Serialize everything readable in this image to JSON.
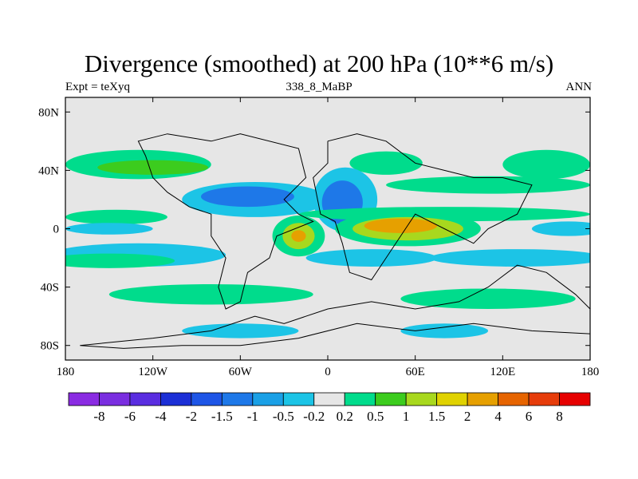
{
  "title": "Divergence (smoothed) at 200 hPa (10**6 m/s)",
  "subtitle_left": "Expt = teXyq",
  "subtitle_center": "338_8_MaBP",
  "subtitle_right": "ANN",
  "map": {
    "projection": "cylindrical equidistant",
    "lon_range": [
      -180,
      180
    ],
    "lat_range": [
      -90,
      90
    ],
    "background_color": "#e6e6e6",
    "x_ticks": [
      {
        "value": -180,
        "label": "180"
      },
      {
        "value": -120,
        "label": "120W"
      },
      {
        "value": -60,
        "label": "60W"
      },
      {
        "value": 0,
        "label": "0"
      },
      {
        "value": 60,
        "label": "60E"
      },
      {
        "value": 120,
        "label": "120E"
      },
      {
        "value": 180,
        "label": "180"
      }
    ],
    "y_ticks": [
      {
        "value": 80,
        "label": "80N"
      },
      {
        "value": 40,
        "label": "40N"
      },
      {
        "value": 0,
        "label": "0"
      },
      {
        "value": -40,
        "label": "40S"
      },
      {
        "value": -80,
        "label": "80S"
      }
    ]
  },
  "colorbar": {
    "colors": [
      "#8a2be2",
      "#7a2ee0",
      "#5a2de0",
      "#1c2fd6",
      "#1e55e6",
      "#1e78e8",
      "#1aa0e6",
      "#1cc4e6",
      "#e6e6e6",
      "#00dc8c",
      "#3ccc1e",
      "#a8d81e",
      "#e0d200",
      "#e6a000",
      "#e66400",
      "#e63c0a",
      "#e60000"
    ],
    "labels": [
      "-8",
      "-6",
      "-4",
      "-2",
      "-1.5",
      "-1",
      "-0.5",
      "-0.2",
      "0.2",
      "0.5",
      "1",
      "1.5",
      "2",
      "4",
      "6",
      "8"
    ]
  },
  "field_blobs": [
    {
      "lon": -130,
      "lat": 44,
      "rx": 50,
      "ry": 10,
      "level": 1
    },
    {
      "lon": -120,
      "lat": 42,
      "rx": 38,
      "ry": 5,
      "level": 2
    },
    {
      "lon": 150,
      "lat": 44,
      "rx": 30,
      "ry": 10,
      "level": 1
    },
    {
      "lon": 40,
      "lat": 45,
      "rx": 25,
      "ry": 8,
      "level": 1
    },
    {
      "lon": 110,
      "lat": 30,
      "rx": 70,
      "ry": 6,
      "level": 1
    },
    {
      "lon": -50,
      "lat": 20,
      "rx": 50,
      "ry": 12,
      "level": -1
    },
    {
      "lon": -55,
      "lat": 22,
      "rx": 32,
      "ry": 7,
      "level": -3
    },
    {
      "lon": 12,
      "lat": 20,
      "rx": 22,
      "ry": 22,
      "level": -1
    },
    {
      "lon": 10,
      "lat": 18,
      "rx": 14,
      "ry": 15,
      "level": -3
    },
    {
      "lon": 80,
      "lat": 10,
      "rx": 100,
      "ry": 5,
      "level": 1
    },
    {
      "lon": -145,
      "lat": 8,
      "rx": 35,
      "ry": 5,
      "level": 1
    },
    {
      "lon": -150,
      "lat": 0,
      "rx": 30,
      "ry": 4,
      "level": -1
    },
    {
      "lon": -20,
      "lat": -5,
      "rx": 18,
      "ry": 14,
      "level": 1
    },
    {
      "lon": -20,
      "lat": -5,
      "rx": 11,
      "ry": 9,
      "level": 3
    },
    {
      "lon": -20,
      "lat": -5,
      "rx": 5,
      "ry": 4,
      "level": 5
    },
    {
      "lon": 55,
      "lat": 0,
      "rx": 50,
      "ry": 12,
      "level": 1
    },
    {
      "lon": 55,
      "lat": 0,
      "rx": 38,
      "ry": 8,
      "level": 3
    },
    {
      "lon": 50,
      "lat": 2,
      "rx": 25,
      "ry": 5,
      "level": 5
    },
    {
      "lon": 165,
      "lat": 0,
      "rx": 25,
      "ry": 5,
      "level": -1
    },
    {
      "lon": -130,
      "lat": -18,
      "rx": 60,
      "ry": 8,
      "level": -1
    },
    {
      "lon": -150,
      "lat": -22,
      "rx": 45,
      "ry": 5,
      "level": 1
    },
    {
      "lon": 30,
      "lat": -20,
      "rx": 45,
      "ry": 6,
      "level": -1
    },
    {
      "lon": 130,
      "lat": -20,
      "rx": 60,
      "ry": 6,
      "level": -1
    },
    {
      "lon": -80,
      "lat": -45,
      "rx": 70,
      "ry": 7,
      "level": 1
    },
    {
      "lon": 110,
      "lat": -48,
      "rx": 60,
      "ry": 7,
      "level": 1
    },
    {
      "lon": -60,
      "lat": -70,
      "rx": 40,
      "ry": 5,
      "level": -1
    },
    {
      "lon": 80,
      "lat": -70,
      "rx": 30,
      "ry": 5,
      "level": -1
    }
  ],
  "continent_outlines": [
    [
      [
        -80,
        60
      ],
      [
        -60,
        65
      ],
      [
        -20,
        55
      ],
      [
        -15,
        35
      ],
      [
        -30,
        20
      ],
      [
        -20,
        10
      ],
      [
        -10,
        5
      ],
      [
        -35,
        -5
      ],
      [
        -40,
        -20
      ],
      [
        -55,
        -30
      ],
      [
        -60,
        -50
      ],
      [
        -70,
        -55
      ],
      [
        -75,
        -40
      ],
      [
        -70,
        -20
      ],
      [
        -80,
        -5
      ],
      [
        -80,
        10
      ],
      [
        -95,
        15
      ],
      [
        -110,
        25
      ],
      [
        -120,
        35
      ],
      [
        -125,
        50
      ],
      [
        -130,
        60
      ],
      [
        -110,
        65
      ],
      [
        -80,
        60
      ]
    ],
    [
      [
        0,
        60
      ],
      [
        20,
        65
      ],
      [
        40,
        60
      ],
      [
        60,
        45
      ],
      [
        80,
        40
      ],
      [
        100,
        35
      ],
      [
        120,
        35
      ],
      [
        140,
        30
      ],
      [
        130,
        10
      ],
      [
        110,
        0
      ],
      [
        100,
        -10
      ],
      [
        80,
        0
      ],
      [
        60,
        10
      ],
      [
        50,
        -5
      ],
      [
        40,
        -20
      ],
      [
        30,
        -35
      ],
      [
        15,
        -30
      ],
      [
        10,
        -10
      ],
      [
        5,
        5
      ],
      [
        -5,
        10
      ],
      [
        -10,
        35
      ],
      [
        0,
        45
      ],
      [
        0,
        60
      ]
    ],
    [
      [
        -170,
        -80
      ],
      [
        -120,
        -75
      ],
      [
        -80,
        -70
      ],
      [
        -50,
        -60
      ],
      [
        -30,
        -65
      ],
      [
        0,
        -55
      ],
      [
        30,
        -50
      ],
      [
        60,
        -55
      ],
      [
        90,
        -50
      ],
      [
        110,
        -40
      ],
      [
        130,
        -25
      ],
      [
        150,
        -30
      ],
      [
        170,
        -45
      ],
      [
        180,
        -55
      ],
      [
        180,
        -72
      ],
      [
        140,
        -70
      ],
      [
        100,
        -65
      ],
      [
        60,
        -70
      ],
      [
        20,
        -65
      ],
      [
        -20,
        -75
      ],
      [
        -60,
        -80
      ],
      [
        -100,
        -80
      ],
      [
        -140,
        -82
      ],
      [
        -170,
        -80
      ]
    ]
  ]
}
